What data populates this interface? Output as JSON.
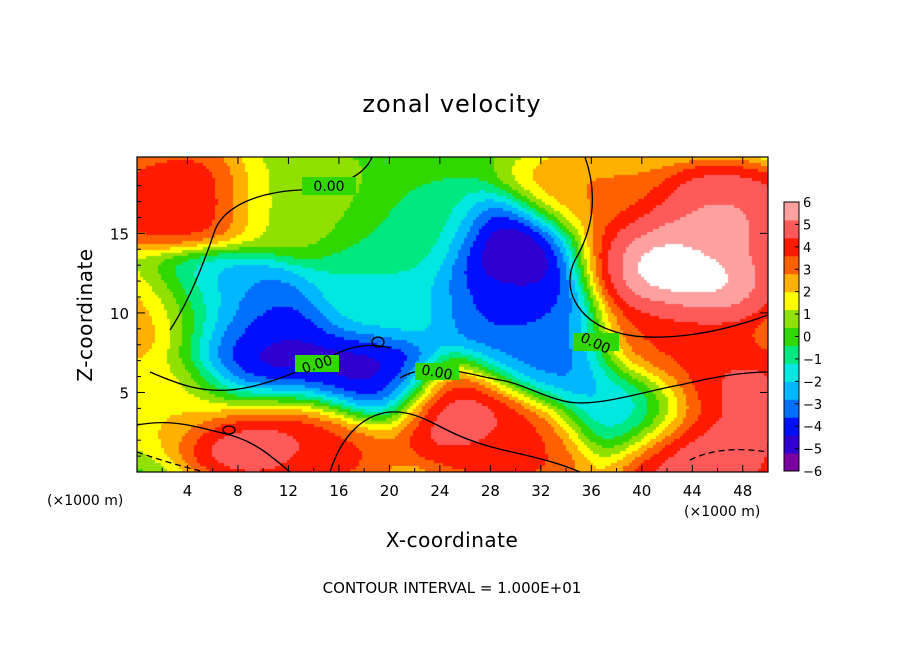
{
  "chart_data": {
    "type": "heatmap",
    "title": "zonal velocity",
    "xlabel": "X-coordinate",
    "ylabel": "Z-coordinate",
    "x_unit": "(×1000 m)",
    "note": "CONTOUR INTERVAL = 1.000E+01",
    "xlim": [
      0,
      50
    ],
    "ylim": [
      0,
      19.8
    ],
    "x_ticks": [
      "4",
      "8",
      "12",
      "16",
      "20",
      "24",
      "28",
      "32",
      "36",
      "40",
      "44",
      "48"
    ],
    "y_ticks": [
      "5",
      "10",
      "15"
    ],
    "colorbar": {
      "min": -6,
      "max": 6,
      "ticks": [
        "6",
        "5",
        "4",
        "3",
        "2",
        "1",
        "0",
        "−1",
        "−2",
        "−3",
        "−4",
        "−5",
        "−6"
      ],
      "colors": [
        "#7a00a0",
        "#2f00d0",
        "#0010ff",
        "#0070ff",
        "#00b8ff",
        "#00e8e0",
        "#00e880",
        "#30d800",
        "#90e000",
        "#ffff00",
        "#ffb000",
        "#ff6000",
        "#ff1a00",
        "#ff5a5a",
        "#ffa0a0"
      ]
    },
    "contour_labels": [
      "0.00",
      "0.00",
      "0.00",
      "0.00"
    ],
    "features": [
      {
        "x": 4,
        "z": 17,
        "value": 4.5
      },
      {
        "x": 2,
        "z": 10,
        "value": 3.5
      },
      {
        "x": 12,
        "z": 17,
        "value": 0.8
      },
      {
        "x": 22,
        "z": 15,
        "value": -0.5
      },
      {
        "x": 20,
        "z": 11,
        "value": -1.5
      },
      {
        "x": 9,
        "z": 9,
        "value": -4.5
      },
      {
        "x": 10,
        "z": 6,
        "value": -5.5
      },
      {
        "x": 6,
        "z": 11,
        "value": -3
      },
      {
        "x": 30,
        "z": 14,
        "value": -6
      },
      {
        "x": 29,
        "z": 11,
        "value": -4
      },
      {
        "x": 32,
        "z": 7,
        "value": -3.5
      },
      {
        "x": 18,
        "z": 6,
        "value": -5
      },
      {
        "x": 40,
        "z": 14,
        "value": 6
      },
      {
        "x": 44,
        "z": 12,
        "value": 6
      },
      {
        "x": 46,
        "z": 16,
        "value": 5.5
      },
      {
        "x": 42,
        "z": 8,
        "value": 4
      },
      {
        "x": 36,
        "z": 17,
        "value": 3
      },
      {
        "x": 10,
        "z": 3,
        "value": 6
      },
      {
        "x": 26,
        "z": 4,
        "value": 5.5
      },
      {
        "x": 30,
        "z": 2,
        "value": 4
      },
      {
        "x": 14,
        "z": 2,
        "value": 4
      },
      {
        "x": 46,
        "z": 5,
        "value": 5
      },
      {
        "x": 44,
        "z": 1.5,
        "value": 5.5
      },
      {
        "x": 39,
        "z": 4,
        "value": -2.5
      },
      {
        "x": 3,
        "z": 5,
        "value": 2
      }
    ]
  }
}
